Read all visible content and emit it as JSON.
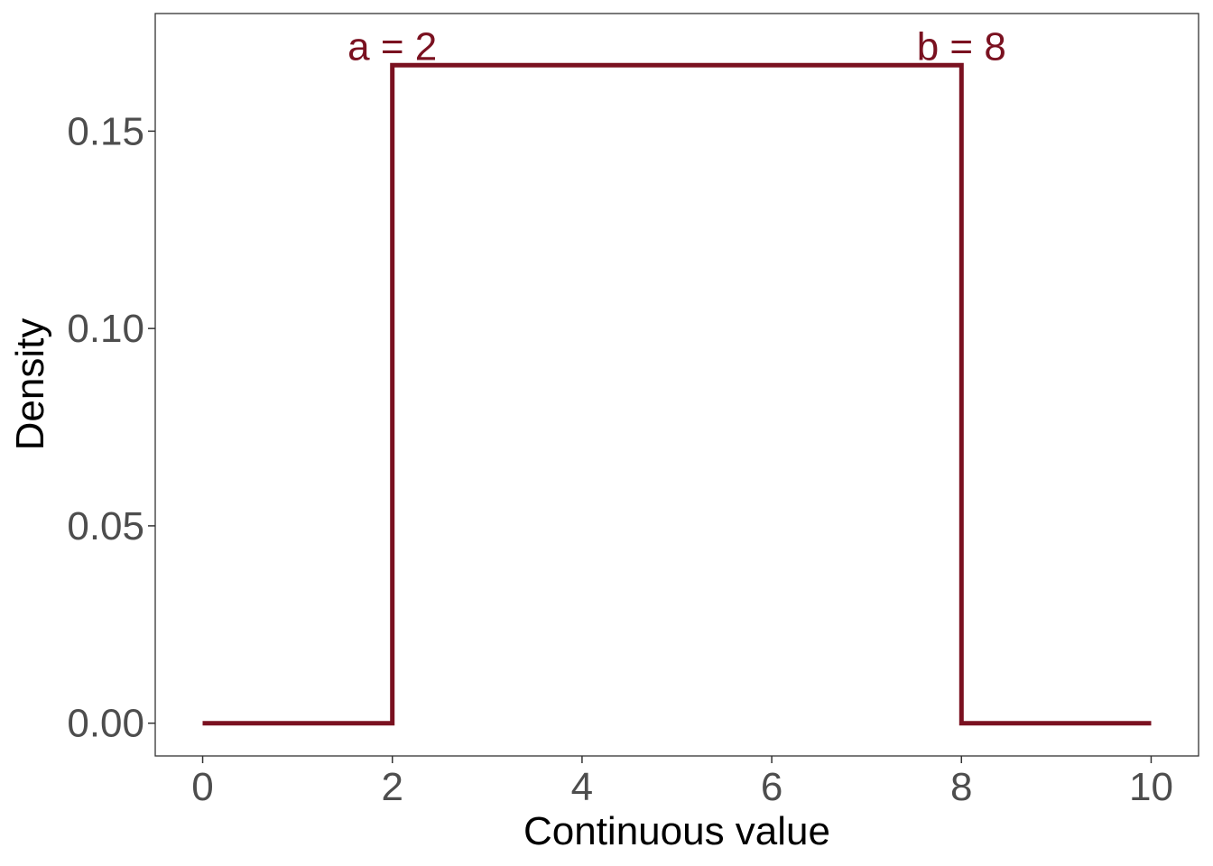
{
  "chart_data": {
    "type": "line",
    "title": "",
    "xlabel": "Continuous value",
    "ylabel": "Density",
    "xlim": [
      -0.5,
      10.5
    ],
    "ylim": [
      -0.0083,
      0.1798
    ],
    "x_ticks": [
      0,
      2,
      4,
      6,
      8,
      10
    ],
    "x_tick_labels": [
      "0",
      "2",
      "4",
      "6",
      "8",
      "10"
    ],
    "y_ticks": [
      0,
      0.05,
      0.1,
      0.15
    ],
    "y_tick_labels": [
      "0.00",
      "0.05",
      "0.10",
      "0.15"
    ],
    "grid": false,
    "series": [
      {
        "color": "#7a1120",
        "x": [
          0,
          2,
          2,
          8,
          8,
          10
        ],
        "y": [
          0,
          0,
          0.1667,
          0.1667,
          0,
          0
        ]
      }
    ],
    "annotations": [
      {
        "text": "a = 2",
        "x": 2,
        "y": 0.1667,
        "color": "#7a1120"
      },
      {
        "text": "b = 8",
        "x": 8,
        "y": 0.1667,
        "color": "#7a1120"
      }
    ]
  }
}
